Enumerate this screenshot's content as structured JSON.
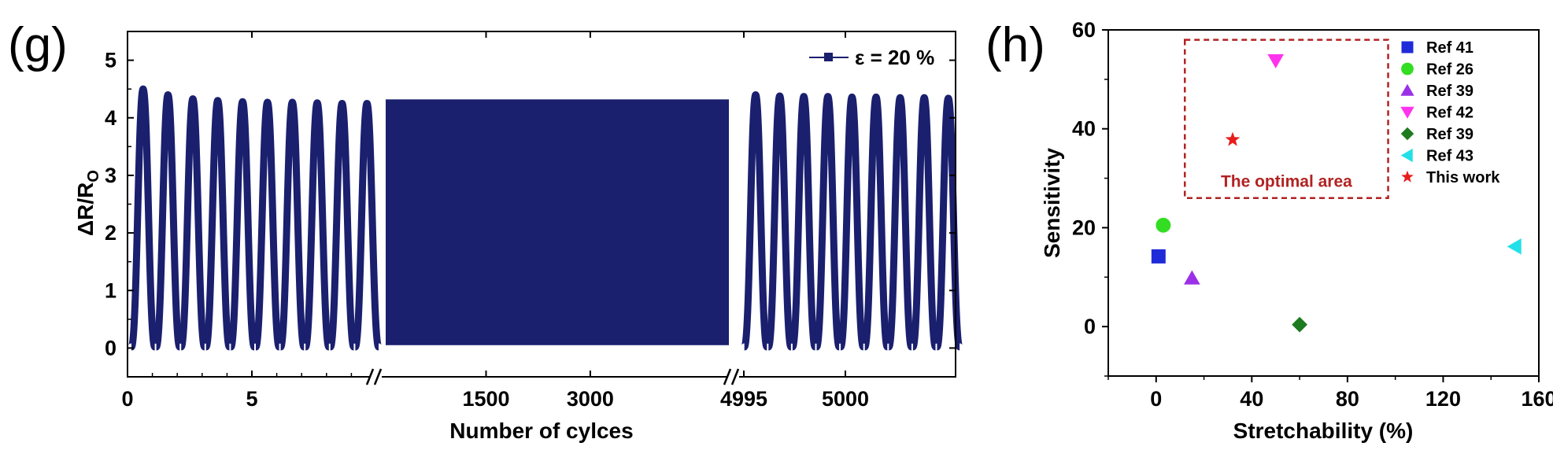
{
  "chart_data": [
    {
      "panel_label": "(g)",
      "type": "line",
      "title": "",
      "xlabel": "Number of cylces",
      "ylabel": "ΔR/R",
      "ylabel_sub": "O",
      "ylim": [
        -0.5,
        5.5
      ],
      "yticks": [
        "0",
        "1",
        "2",
        "3",
        "4",
        "5"
      ],
      "ytick_values": [
        0,
        1,
        2,
        3,
        4,
        5
      ],
      "x_segments": [
        {
          "name": "start",
          "xlim": [
            0,
            10
          ],
          "ticks": [
            "0",
            "5"
          ],
          "tick_values": [
            0,
            5
          ]
        },
        {
          "name": "middle",
          "xlim": [
            10,
            4995
          ],
          "ticks": [
            "1500",
            "3000",
            "4995"
          ],
          "tick_values": [
            1500,
            3000,
            4995
          ]
        },
        {
          "name": "end",
          "xlim": [
            4990,
            5010
          ],
          "ticks": [
            "5000"
          ],
          "tick_values": [
            5000
          ]
        }
      ],
      "series": [
        {
          "name": "ε = 20 %",
          "color": "#1a1f6e",
          "start_cycle_peaks": [
            4.5,
            4.4,
            4.33,
            4.3,
            4.28,
            4.27,
            4.27,
            4.26,
            4.25,
            4.25
          ],
          "middle_band_range": [
            0.05,
            4.32
          ],
          "end_cycle_peaks": [
            4.4,
            4.38,
            4.37,
            4.37,
            4.36,
            4.36,
            4.35,
            4.35,
            4.34
          ],
          "min_value": 0.02
        }
      ],
      "legend": {
        "label": "ε = 20 %",
        "placement": "top-right"
      }
    },
    {
      "panel_label": "(h)",
      "type": "scatter",
      "title": "",
      "xlabel": "Stretchability (%)",
      "ylabel": "Sensitivity",
      "xlim": [
        -20,
        160
      ],
      "ylim": [
        -10,
        60
      ],
      "xticks": [
        "0",
        "40",
        "80",
        "120",
        "160"
      ],
      "xtick_values": [
        0,
        40,
        80,
        120,
        160
      ],
      "yticks": [
        "0",
        "20",
        "40",
        "60"
      ],
      "ytick_values": [
        0,
        20,
        40,
        60
      ],
      "points": [
        {
          "label": "Ref 41",
          "x": 1,
          "y": 14.2,
          "marker": "square",
          "color": "#1f2bd8"
        },
        {
          "label": "Ref 26",
          "x": 3,
          "y": 20.5,
          "marker": "circle",
          "color": "#33dd22"
        },
        {
          "label": "Ref 39",
          "x": 15,
          "y": 9.8,
          "marker": "triangle-up",
          "color": "#9b30e8"
        },
        {
          "label": "Ref 42",
          "x": 50,
          "y": 53.8,
          "marker": "triangle-down",
          "color": "#ff33ee"
        },
        {
          "label": "Ref 39",
          "x": 60,
          "y": 0.4,
          "marker": "diamond",
          "color": "#1e7a1e"
        },
        {
          "label": "Ref 43",
          "x": 150,
          "y": 16.2,
          "marker": "triangle-left",
          "color": "#22e0e8"
        },
        {
          "label": "This work",
          "x": 32,
          "y": 37.8,
          "marker": "star",
          "color": "#e81c1c"
        }
      ],
      "annotation": {
        "text": "The optimal area",
        "x_range": [
          12,
          97
        ],
        "y_range": [
          26,
          58
        ],
        "color": "#b22222"
      },
      "legend": {
        "placement": "top-right"
      }
    }
  ]
}
